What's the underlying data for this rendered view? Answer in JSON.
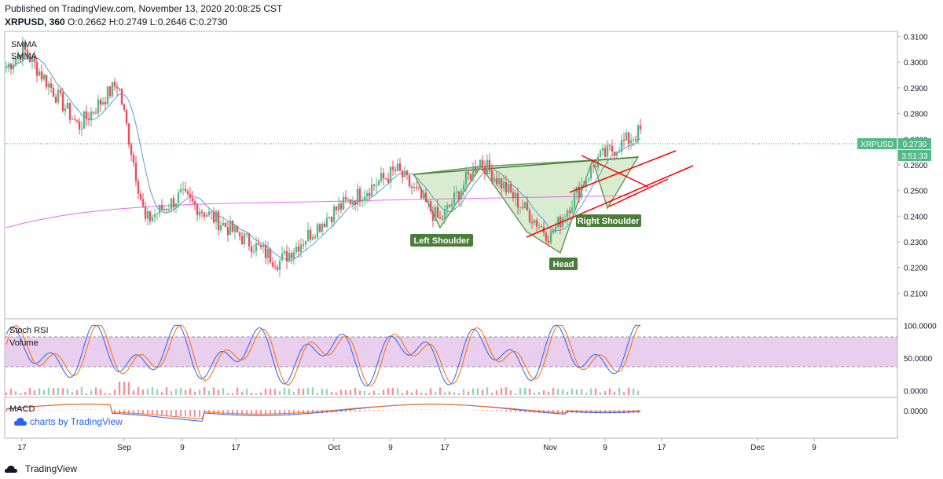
{
  "header": {
    "published": "Published on TradingView.com, November 13, 2020 20:08:25 CST",
    "symbol": "XRPUSD, 360",
    "ohlc": "O:0.2662 H:0.2749 L:0.2646 C:0.2730"
  },
  "legend": {
    "sma1": "SMMA",
    "sma2": "SMMA"
  },
  "price_tag": {
    "symbol": "XRPUSD",
    "price": "0.2730",
    "countdown": "3:51:33"
  },
  "indicators": {
    "stoch": "Stoch RSI",
    "volume": "Volume",
    "macd": "MACD"
  },
  "watermark": "charts by TradingView",
  "footer": "TradingView",
  "colors": {
    "up": "#53b987",
    "down": "#eb4d5c",
    "pattern_fill": "#cfe8c4",
    "pattern_line": "#4a7d39",
    "trend": "#ff0000",
    "ma_fast": "#5b9bd5",
    "ma_slow": "#ea6af0",
    "stoch_band": "#e1bee7"
  },
  "pattern_labels": {
    "left": "Left Shoulder",
    "head": "Head",
    "right": "Right Shoulder"
  },
  "chart_data": [
    {
      "type": "candlestick",
      "ylim": [
        0.2,
        0.312
      ],
      "y_ticks": [
        "0.3100",
        "0.3000",
        "0.2900",
        "0.2800",
        "0.2700",
        "0.2600",
        "0.2500",
        "0.2400",
        "0.2300",
        "0.2200",
        "0.2100"
      ],
      "x_ticks": [
        "17",
        "Sep",
        "9",
        "17",
        "Oct",
        "9",
        "17",
        "Nov",
        "9",
        "17",
        "Dec",
        "9"
      ],
      "key_closes": [
        {
          "date": "Aug 17",
          "close": 0.298
        },
        {
          "date": "Aug 20",
          "close": 0.305
        },
        {
          "date": "Aug 28",
          "close": 0.275
        },
        {
          "date": "Sep 2",
          "close": 0.292
        },
        {
          "date": "Sep 6",
          "close": 0.238
        },
        {
          "date": "Sep 12",
          "close": 0.248
        },
        {
          "date": "Sep 23",
          "close": 0.222
        },
        {
          "date": "Oct 2",
          "close": 0.242
        },
        {
          "date": "Oct 10",
          "close": 0.258
        },
        {
          "date": "Oct 16",
          "close": 0.238
        },
        {
          "date": "Oct 21",
          "close": 0.262
        },
        {
          "date": "Nov 2",
          "close": 0.232
        },
        {
          "date": "Nov 8",
          "close": 0.262
        },
        {
          "date": "Nov 13",
          "close": 0.273
        }
      ]
    },
    {
      "type": "line",
      "name": "Stoch RSI",
      "ylim": [
        -10,
        110
      ],
      "y_ticks": [
        "100.0000",
        "50.0000",
        "0.0000"
      ]
    },
    {
      "type": "bar",
      "name": "MACD",
      "y_ticks": [
        "0.0000"
      ]
    }
  ]
}
